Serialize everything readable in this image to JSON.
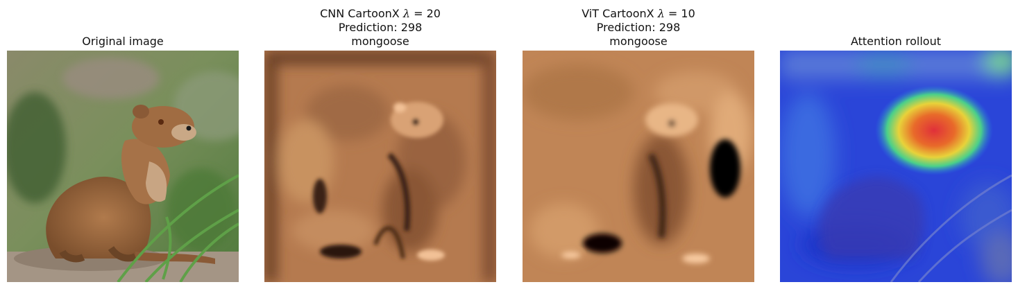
{
  "panels": [
    {
      "id": "original",
      "title_lines": [
        "Original image"
      ],
      "image": "mongoose-photo",
      "colors": {
        "background": "#6f8656",
        "fur": "#9a6a44",
        "rock": "#a49585"
      }
    },
    {
      "id": "cnn",
      "title_prefix": "CNN CartoonX ",
      "lambda_symbol": "λ",
      "lambda_value": " = 20",
      "title_lines": [
        "Prediction: 298",
        "mongoose"
      ],
      "image": "mongoose-cartoonx-copper",
      "colors": {
        "base": "#b57a4f",
        "dark": "#1a0e06",
        "light": "#f2c196"
      }
    },
    {
      "id": "vit",
      "title_prefix": "ViT CartoonX ",
      "lambda_symbol": "λ",
      "lambda_value": " = 10",
      "title_lines": [
        "Prediction: 298",
        "mongoose"
      ],
      "image": "mongoose-cartoonx-copper",
      "colors": {
        "base": "#c08556",
        "dark": "#050302",
        "light": "#f8caa0"
      }
    },
    {
      "id": "rollout",
      "title_lines": [
        "Attention rollout"
      ],
      "image": "mongoose-attention-heatmap",
      "colors": {
        "cold": "#2a45d8",
        "warm": "#e83a2a",
        "mid": "#39c8a6"
      }
    }
  ]
}
